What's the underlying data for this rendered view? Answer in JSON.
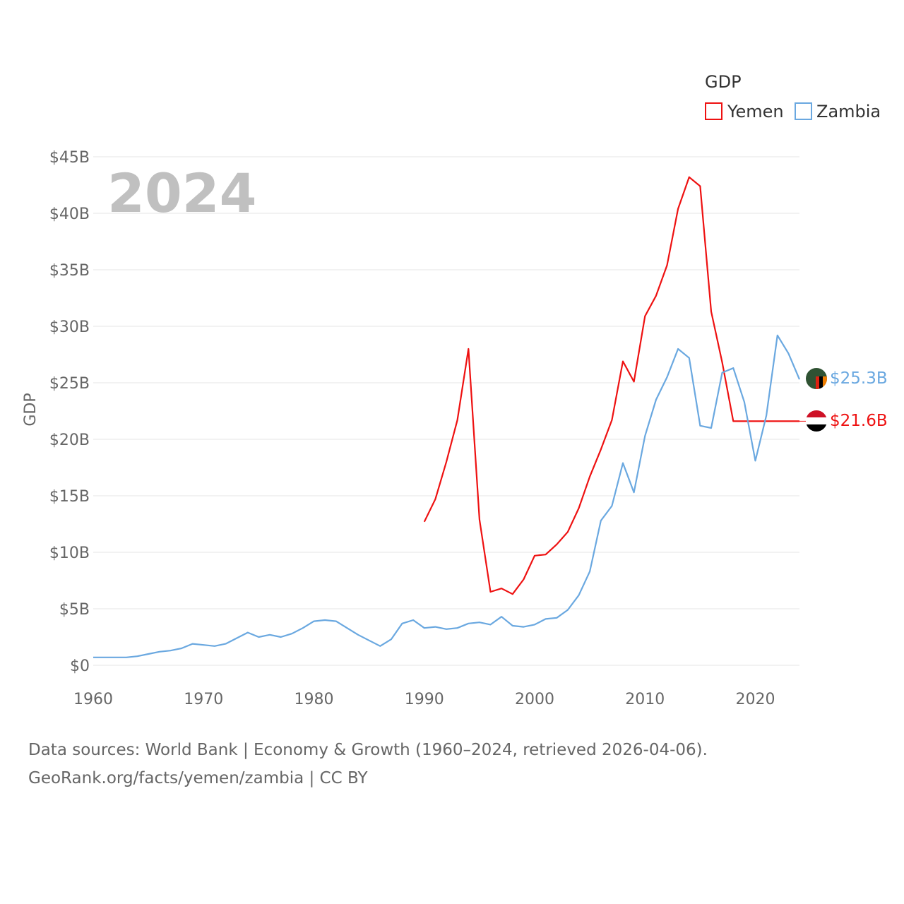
{
  "chart_data": {
    "type": "line",
    "title": "",
    "year_label": "2024",
    "xlabel": "",
    "ylabel": "GDP",
    "legend_title": "GDP",
    "legend_position": "top-right",
    "xlim": [
      1960,
      2024
    ],
    "ylim": [
      0,
      45
    ],
    "x_ticks": [
      1960,
      1970,
      1980,
      1990,
      2000,
      2010,
      2020
    ],
    "y_ticks": [
      0,
      5,
      10,
      15,
      20,
      25,
      30,
      35,
      40,
      45
    ],
    "y_tick_labels": [
      "$0",
      "$5B",
      "$10B",
      "$15B",
      "$20B",
      "$25B",
      "$30B",
      "$35B",
      "$40B",
      "$45B"
    ],
    "grid": true,
    "series": [
      {
        "name": "Yemen",
        "color": "#ee1111",
        "end_label": "$21.6B",
        "points": [
          [
            1990,
            12.7
          ],
          [
            1991,
            14.7
          ],
          [
            1992,
            18.0
          ],
          [
            1993,
            21.7
          ],
          [
            1994,
            28.0
          ],
          [
            1995,
            12.9
          ],
          [
            1996,
            6.5
          ],
          [
            1997,
            6.8
          ],
          [
            1998,
            6.3
          ],
          [
            1999,
            7.6
          ],
          [
            2000,
            9.7
          ],
          [
            2001,
            9.8
          ],
          [
            2002,
            10.7
          ],
          [
            2003,
            11.8
          ],
          [
            2004,
            13.9
          ],
          [
            2005,
            16.7
          ],
          [
            2006,
            19.1
          ],
          [
            2007,
            21.7
          ],
          [
            2008,
            26.9
          ],
          [
            2009,
            25.1
          ],
          [
            2010,
            30.9
          ],
          [
            2011,
            32.7
          ],
          [
            2012,
            35.4
          ],
          [
            2013,
            40.4
          ],
          [
            2014,
            43.2
          ],
          [
            2015,
            42.4
          ],
          [
            2016,
            31.3
          ],
          [
            2017,
            26.8
          ],
          [
            2018,
            21.6
          ],
          [
            2019,
            21.6
          ],
          [
            2020,
            21.6
          ],
          [
            2021,
            21.6
          ],
          [
            2022,
            21.6
          ],
          [
            2023,
            21.6
          ],
          [
            2024,
            21.6
          ]
        ]
      },
      {
        "name": "Zambia",
        "color": "#6aa8e0",
        "end_label": "$25.3B",
        "points": [
          [
            1960,
            0.7
          ],
          [
            1961,
            0.7
          ],
          [
            1962,
            0.7
          ],
          [
            1963,
            0.7
          ],
          [
            1964,
            0.8
          ],
          [
            1965,
            1.0
          ],
          [
            1966,
            1.2
          ],
          [
            1967,
            1.3
          ],
          [
            1968,
            1.5
          ],
          [
            1969,
            1.9
          ],
          [
            1970,
            1.8
          ],
          [
            1971,
            1.7
          ],
          [
            1972,
            1.9
          ],
          [
            1973,
            2.4
          ],
          [
            1974,
            2.9
          ],
          [
            1975,
            2.5
          ],
          [
            1976,
            2.7
          ],
          [
            1977,
            2.5
          ],
          [
            1978,
            2.8
          ],
          [
            1979,
            3.3
          ],
          [
            1980,
            3.9
          ],
          [
            1981,
            4.0
          ],
          [
            1982,
            3.9
          ],
          [
            1983,
            3.3
          ],
          [
            1984,
            2.7
          ],
          [
            1985,
            2.2
          ],
          [
            1986,
            1.7
          ],
          [
            1987,
            2.3
          ],
          [
            1988,
            3.7
          ],
          [
            1989,
            4.0
          ],
          [
            1990,
            3.3
          ],
          [
            1991,
            3.4
          ],
          [
            1992,
            3.2
          ],
          [
            1993,
            3.3
          ],
          [
            1994,
            3.7
          ],
          [
            1995,
            3.8
          ],
          [
            1996,
            3.6
          ],
          [
            1997,
            4.3
          ],
          [
            1998,
            3.5
          ],
          [
            1999,
            3.4
          ],
          [
            2000,
            3.6
          ],
          [
            2001,
            4.1
          ],
          [
            2002,
            4.2
          ],
          [
            2003,
            4.9
          ],
          [
            2004,
            6.2
          ],
          [
            2005,
            8.3
          ],
          [
            2006,
            12.8
          ],
          [
            2007,
            14.1
          ],
          [
            2008,
            17.9
          ],
          [
            2009,
            15.3
          ],
          [
            2010,
            20.3
          ],
          [
            2011,
            23.5
          ],
          [
            2012,
            25.5
          ],
          [
            2013,
            28.0
          ],
          [
            2014,
            27.2
          ],
          [
            2015,
            21.2
          ],
          [
            2016,
            21.0
          ],
          [
            2017,
            25.9
          ],
          [
            2018,
            26.3
          ],
          [
            2019,
            23.3
          ],
          [
            2020,
            18.1
          ],
          [
            2021,
            22.1
          ],
          [
            2022,
            29.2
          ],
          [
            2023,
            27.6
          ],
          [
            2024,
            25.3
          ]
        ]
      }
    ]
  },
  "footer": {
    "source_line1": "Data sources: World Bank | Economy & Growth (1960–2024, retrieved 2026-04-06).",
    "source_line2": "GeoRank.org/facts/yemen/zambia | CC BY"
  }
}
